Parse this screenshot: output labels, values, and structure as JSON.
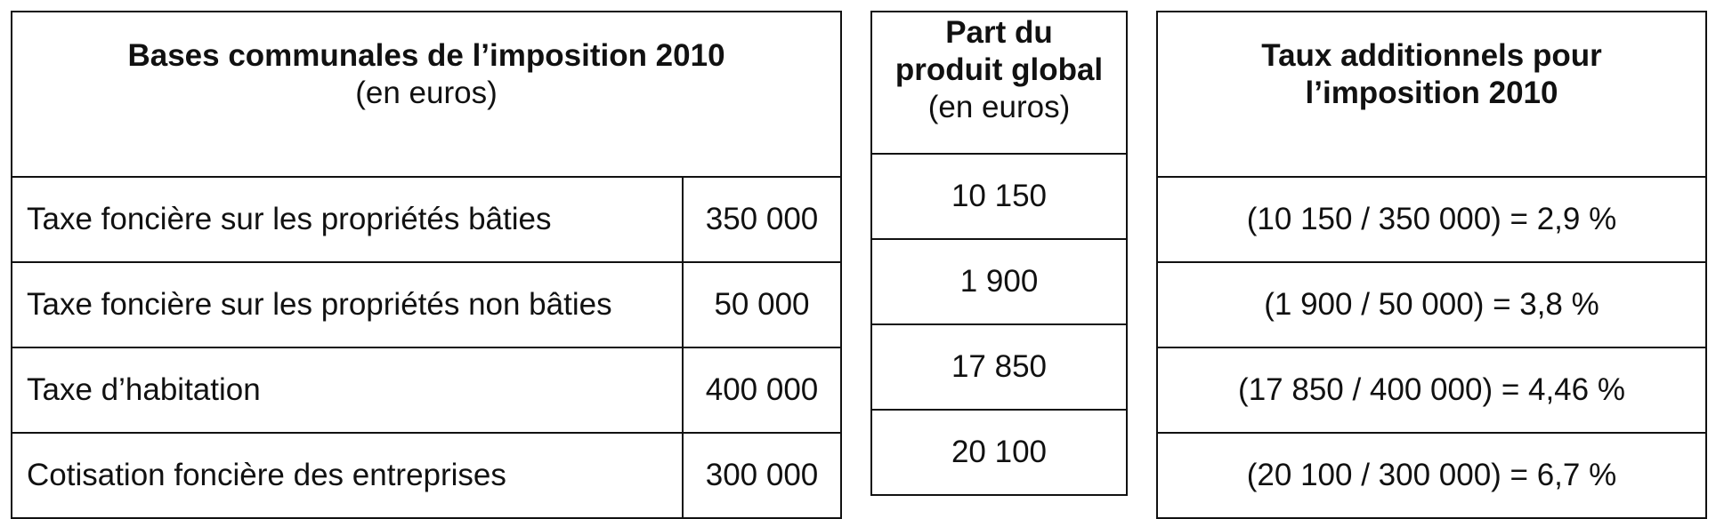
{
  "bases_table": {
    "header_title": "Bases communales de l’imposition 2010",
    "header_unit": "(en euros)",
    "rows": [
      {
        "label": "Taxe foncière sur les propriétés bâties",
        "value": "350 000"
      },
      {
        "label": "Taxe foncière sur les propriétés non bâties",
        "value": "50 000"
      },
      {
        "label": "Taxe d’habitation",
        "value": "400 000"
      },
      {
        "label": "Cotisation foncière des entreprises",
        "value": "300 000"
      }
    ]
  },
  "share_table": {
    "header_line1": "Part du",
    "header_line2": "produit global",
    "header_unit": "(en euros)",
    "rows": [
      "10 150",
      "1 900",
      "17 850",
      "20 100"
    ]
  },
  "rates_table": {
    "header_line1": "Taux additionnels pour",
    "header_line2": "l’imposition 2010",
    "rows": [
      "(10 150 / 350 000) = 2,9 %",
      "(1 900 / 50 000) = 3,8 %",
      "(17 850 / 400 000) = 4,46 %",
      "(20 100 / 300 000) = 6,7 %"
    ]
  }
}
